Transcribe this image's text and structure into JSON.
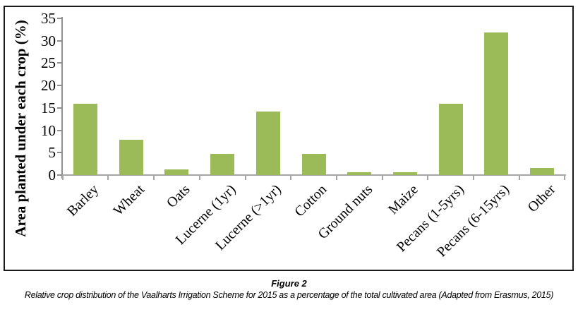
{
  "figure": {
    "caption_title": "Figure 2",
    "caption_text": "Relative crop distribution of the Vaalharts Irrigation Scheme for 2015 as a percentage of the total cultivated area (Adapted from Erasmus, 2015)"
  },
  "chart_data": {
    "type": "bar",
    "categories": [
      "Barley",
      "Wheat",
      "Oats",
      "Lucerne (1yr)",
      "Lucerne (>1yr)",
      "Cotton",
      "Ground nuts",
      "Maize",
      "Pecans (1-5yrs)",
      "Pecans (6-15yrs)",
      "Other"
    ],
    "values": [
      16,
      7.9,
      1.2,
      4.8,
      14.2,
      4.8,
      0.7,
      0.7,
      15.9,
      31.8,
      1.6
    ],
    "title": "",
    "xlabel": "",
    "ylabel": "Area planted under each crop (%)",
    "ylim": [
      0,
      35
    ],
    "yticks": [
      0,
      5,
      10,
      15,
      20,
      25,
      30,
      35
    ],
    "grid": false,
    "legend": "none",
    "bar_color": "#9BBB59",
    "axis_color": "#a6a6a6",
    "tick_color": "#8e8e8e"
  }
}
